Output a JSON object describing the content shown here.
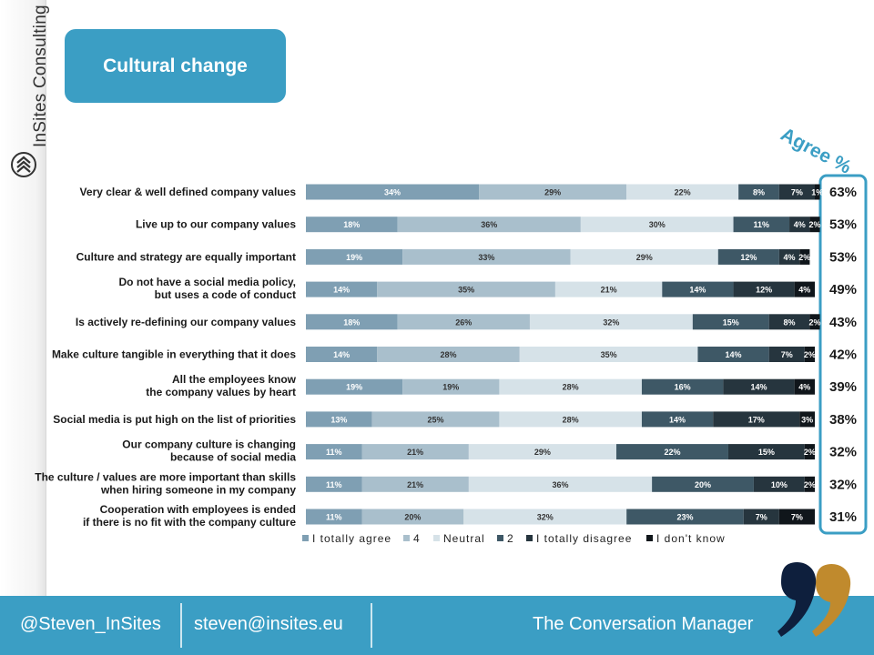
{
  "slide": {
    "title": "Cultural change",
    "brand": "InSites Consulting",
    "agree_label": "Agree %"
  },
  "footer": {
    "handle": "@Steven_InSites",
    "email": "steven@insites.eu",
    "tagline": "The Conversation Manager"
  },
  "colors": {
    "accent": "#3b9ec4",
    "quote_dark": "#0e1f3d",
    "quote_gold": "#c08a2d"
  },
  "chart_data": {
    "type": "bar",
    "orientation": "horizontal",
    "stacked": true,
    "categories": [
      "Very clear & well defined company values",
      "Live up to our company values",
      "Culture and strategy are equally important",
      "Do not have a social media policy, but uses a code of conduct",
      "Is actively re-defining our company values",
      "Make culture tangible in everything that it does",
      "All the employees know the company values by heart",
      "Social media is put high on the list of priorities",
      "Our company culture is changing because of social media",
      "The culture / values are more important than skills when hiring someone in my company",
      "Cooperation with employees is ended if there is no fit with the company culture"
    ],
    "category_lines": [
      [
        "Very clear & well defined company values"
      ],
      [
        "Live up to our company values"
      ],
      [
        "Culture and strategy are equally important"
      ],
      [
        "Do not have a social media policy,",
        "but uses a code of conduct"
      ],
      [
        "Is actively re-defining our company values"
      ],
      [
        "Make culture tangible in everything that it does"
      ],
      [
        "All the employees know",
        "the company values by heart"
      ],
      [
        "Social media is put high on the list of priorities"
      ],
      [
        "Our company culture is changing",
        "because of social media"
      ],
      [
        "The culture / values are more important than skills",
        "when hiring someone in my company"
      ],
      [
        "Cooperation with employees is ended",
        "if there is no fit with the company culture"
      ]
    ],
    "series": [
      {
        "name": "I totally agree",
        "color": "#7f9fb3",
        "values": [
          34,
          18,
          19,
          14,
          18,
          14,
          19,
          13,
          11,
          11,
          11
        ]
      },
      {
        "name": "4",
        "color": "#a9bfcc",
        "values": [
          29,
          36,
          33,
          35,
          26,
          28,
          19,
          25,
          21,
          21,
          20
        ]
      },
      {
        "name": "Neutral",
        "color": "#d6e2e8",
        "values": [
          22,
          30,
          29,
          21,
          32,
          35,
          28,
          28,
          29,
          36,
          32
        ]
      },
      {
        "name": "2",
        "color": "#3e5866",
        "values": [
          8,
          11,
          12,
          14,
          15,
          14,
          16,
          14,
          22,
          20,
          23
        ]
      },
      {
        "name": "I totally disagree",
        "color": "#26353e",
        "values": [
          7,
          4,
          4,
          12,
          8,
          7,
          14,
          17,
          15,
          10,
          7
        ]
      },
      {
        "name": "I don't know",
        "color": "#10161b",
        "values": [
          1,
          2,
          2,
          4,
          2,
          2,
          4,
          3,
          2,
          2,
          7
        ]
      }
    ],
    "agree_percent": [
      "63%",
      "53%",
      "53%",
      "49%",
      "43%",
      "42%",
      "39%",
      "38%",
      "32%",
      "32%",
      "31%"
    ],
    "xlim": [
      0,
      100
    ],
    "legend": "bottom"
  }
}
